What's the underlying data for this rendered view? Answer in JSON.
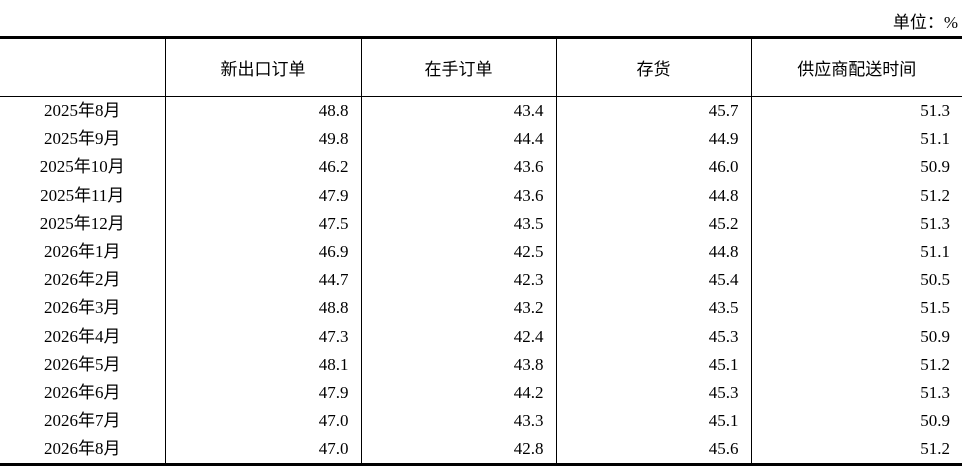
{
  "unit": "单位：%",
  "table": {
    "header": [
      "",
      "新出口订单",
      "在手订单",
      "存货",
      "供应商配送时间"
    ],
    "rows": [
      [
        "2025年8月",
        "48.8",
        "43.4",
        "45.7",
        "51.3"
      ],
      [
        "2025年9月",
        "49.8",
        "44.4",
        "44.9",
        "51.1"
      ],
      [
        "2025年10月",
        "46.2",
        "43.6",
        "46.0",
        "50.9"
      ],
      [
        "2025年11月",
        "47.9",
        "43.6",
        "44.8",
        "51.2"
      ],
      [
        "2025年12月",
        "47.5",
        "43.5",
        "45.2",
        "51.3"
      ],
      [
        "2026年1月",
        "46.9",
        "42.5",
        "44.8",
        "51.1"
      ],
      [
        "2026年2月",
        "44.7",
        "42.3",
        "45.4",
        "50.5"
      ],
      [
        "2026年3月",
        "48.8",
        "43.2",
        "43.5",
        "51.5"
      ],
      [
        "2026年4月",
        "47.3",
        "42.4",
        "45.3",
        "50.9"
      ],
      [
        "2026年5月",
        "48.1",
        "43.8",
        "45.1",
        "51.2"
      ],
      [
        "2026年6月",
        "47.9",
        "44.2",
        "45.3",
        "51.3"
      ],
      [
        "2026年7月",
        "47.0",
        "43.3",
        "45.1",
        "50.9"
      ],
      [
        "2026年8月",
        "47.0",
        "42.8",
        "45.6",
        "51.2"
      ]
    ]
  }
}
